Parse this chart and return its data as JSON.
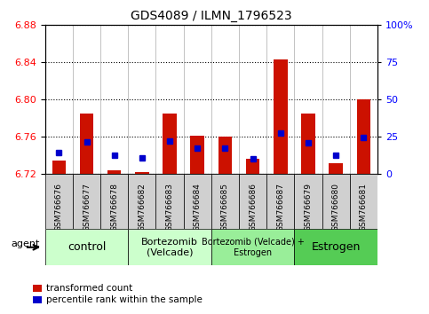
{
  "title": "GDS4089 / ILMN_1796523",
  "samples": [
    "GSM766676",
    "GSM766677",
    "GSM766678",
    "GSM766682",
    "GSM766683",
    "GSM766684",
    "GSM766685",
    "GSM766686",
    "GSM766687",
    "GSM766679",
    "GSM766680",
    "GSM766681"
  ],
  "red_values": [
    6.735,
    6.785,
    6.724,
    6.722,
    6.785,
    6.761,
    6.76,
    6.737,
    6.843,
    6.785,
    6.732,
    6.8
  ],
  "blue_values": [
    6.743,
    6.755,
    6.74,
    6.738,
    6.756,
    6.748,
    6.748,
    6.737,
    6.764,
    6.754,
    6.74,
    6.759
  ],
  "ymin": 6.72,
  "ymax": 6.88,
  "yticks": [
    6.72,
    6.76,
    6.8,
    6.84,
    6.88
  ],
  "right_yticks": [
    0,
    25,
    50,
    75,
    100
  ],
  "group_boundaries": [
    {
      "start": 0,
      "end": 2,
      "label": "control",
      "color": "#ccffcc",
      "fontsize": 9
    },
    {
      "start": 3,
      "end": 5,
      "label": "Bortezomib\n(Velcade)",
      "color": "#ccffcc",
      "fontsize": 8
    },
    {
      "start": 6,
      "end": 8,
      "label": "Bortezomib (Velcade) +\nEstrogen",
      "color": "#99ee99",
      "fontsize": 7
    },
    {
      "start": 9,
      "end": 11,
      "label": "Estrogen",
      "color": "#55cc55",
      "fontsize": 9
    }
  ],
  "bar_color": "#cc1100",
  "dot_color": "#0000cc",
  "baseline": 6.72,
  "bar_width": 0.5,
  "xtick_bg": "#d0d0d0",
  "legend_red": "transformed count",
  "legend_blue": "percentile rank within the sample",
  "agent_label": "agent"
}
